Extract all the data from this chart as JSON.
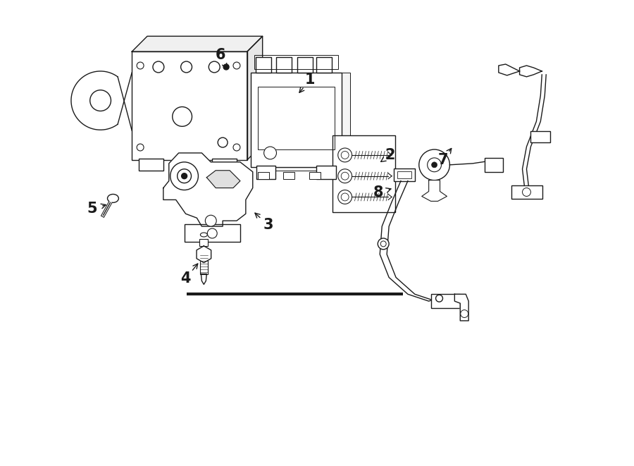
{
  "bg_color": "#ffffff",
  "line_color": "#1a1a1a",
  "figsize": [
    9.0,
    6.61
  ],
  "dpi": 100,
  "label_data": [
    [
      "1",
      4.4,
      5.5,
      4.22,
      5.28
    ],
    [
      "2",
      5.55,
      4.42,
      5.38,
      4.3
    ],
    [
      "3",
      3.8,
      3.42,
      3.58,
      3.62
    ],
    [
      "4",
      2.62,
      2.65,
      2.82,
      2.9
    ],
    [
      "5",
      1.28,
      3.65,
      1.52,
      3.72
    ],
    [
      "6",
      3.12,
      5.85,
      3.22,
      5.62
    ],
    [
      "7",
      6.3,
      4.35,
      6.45,
      4.55
    ],
    [
      "8",
      5.38,
      3.88,
      5.6,
      3.95
    ]
  ]
}
